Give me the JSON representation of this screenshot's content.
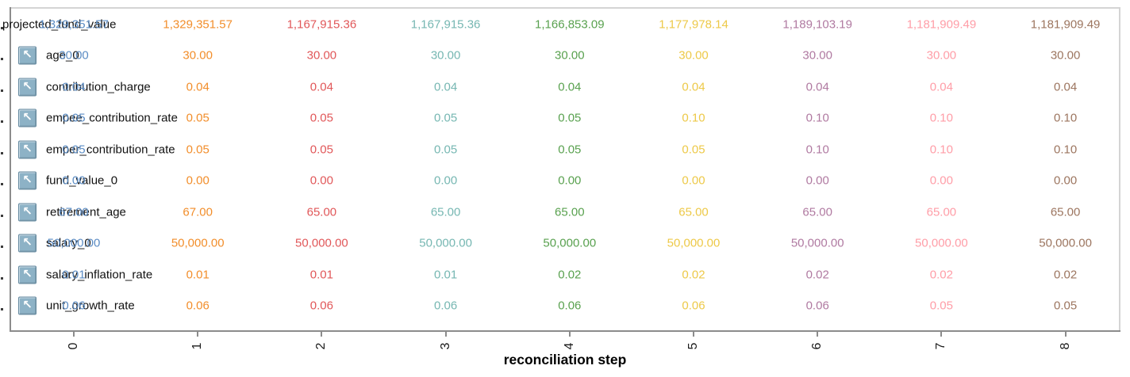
{
  "chart_data": {
    "type": "table",
    "title": "",
    "xlabel": "reconciliation step",
    "x": [
      0,
      1,
      2,
      3,
      4,
      5,
      6,
      7,
      8
    ],
    "x_tick_labels": [
      "0",
      "1",
      "2",
      "3",
      "4",
      "5",
      "6",
      "7",
      "8"
    ],
    "legend": "none",
    "grid": false,
    "step_colors": [
      "#5b8cc4",
      "#f28e2b",
      "#e15759",
      "#76b7b2",
      "#59a14f",
      "#edc948",
      "#b07aa1",
      "#ff9da7",
      "#9c755f"
    ],
    "rows": [
      {
        "label": "projected_fund_value",
        "icon": null,
        "values": [
          "1,329,351.57",
          "1,329,351.57",
          "1,167,915.36",
          "1,167,915.36",
          "1,166,853.09",
          "1,177,978.14",
          "1,189,103.19",
          "1,181,909.49",
          "1,181,909.49"
        ]
      },
      {
        "label": "age_0",
        "icon": "arrow-up-left",
        "values": [
          "30.00",
          "30.00",
          "30.00",
          "30.00",
          "30.00",
          "30.00",
          "30.00",
          "30.00",
          "30.00"
        ]
      },
      {
        "label": "contribution_charge",
        "icon": "arrow-up-left",
        "values": [
          "0.04",
          "0.04",
          "0.04",
          "0.04",
          "0.04",
          "0.04",
          "0.04",
          "0.04",
          "0.04"
        ]
      },
      {
        "label": "empee_contribution_rate",
        "icon": "arrow-up-left",
        "values": [
          "0.05",
          "0.05",
          "0.05",
          "0.05",
          "0.05",
          "0.10",
          "0.10",
          "0.10",
          "0.10"
        ]
      },
      {
        "label": "emper_contribution_rate",
        "icon": "arrow-up-left",
        "values": [
          "0.05",
          "0.05",
          "0.05",
          "0.05",
          "0.05",
          "0.05",
          "0.10",
          "0.10",
          "0.10"
        ]
      },
      {
        "label": "fund_value_0",
        "icon": "arrow-up-left",
        "values": [
          "0.00",
          "0.00",
          "0.00",
          "0.00",
          "0.00",
          "0.00",
          "0.00",
          "0.00",
          "0.00"
        ]
      },
      {
        "label": "retirement_age",
        "icon": "arrow-up-left",
        "values": [
          "67.00",
          "67.00",
          "65.00",
          "65.00",
          "65.00",
          "65.00",
          "65.00",
          "65.00",
          "65.00"
        ]
      },
      {
        "label": "salary_0",
        "icon": "arrow-up-left",
        "values": [
          "50,000.00",
          "50,000.00",
          "50,000.00",
          "50,000.00",
          "50,000.00",
          "50,000.00",
          "50,000.00",
          "50,000.00",
          "50,000.00"
        ]
      },
      {
        "label": "salary_inflation_rate",
        "icon": "arrow-up-left",
        "values": [
          "0.01",
          "0.01",
          "0.01",
          "0.01",
          "0.02",
          "0.02",
          "0.02",
          "0.02",
          "0.02"
        ]
      },
      {
        "label": "unit_growth_rate",
        "icon": "arrow-up-left",
        "values": [
          "0.06",
          "0.06",
          "0.06",
          "0.06",
          "0.06",
          "0.06",
          "0.06",
          "0.05",
          "0.05"
        ]
      }
    ]
  },
  "icons": {
    "row_icon_glyph": "↖"
  },
  "axis": {
    "xlabel": "reconciliation step"
  }
}
